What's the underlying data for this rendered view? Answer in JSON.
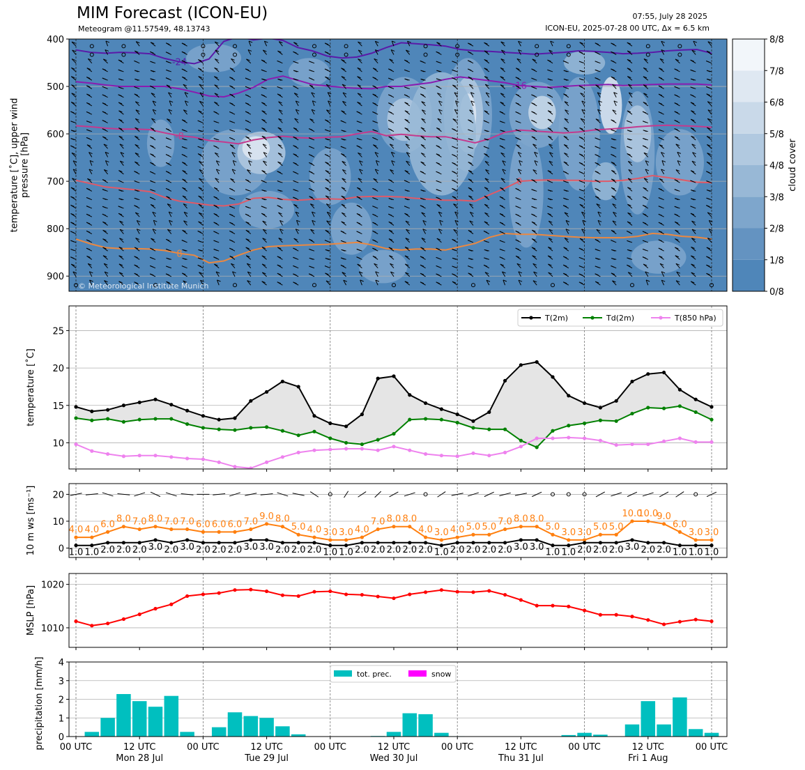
{
  "header": {
    "title": "MIM Forecast (ICON-EU)",
    "subtitle": "Meteogram @11.57549, 48.13743",
    "issued": "07:55, July 28 2025",
    "model_info": "ICON-EU, 2025-07-28 00 UTC, Δx = 6.5 km",
    "copyright": "© Meteorological Institute Munich"
  },
  "x_axis": {
    "tick_labels": [
      "00 UTC",
      "12 UTC",
      "00 UTC",
      "12 UTC",
      "00 UTC",
      "12 UTC",
      "00 UTC",
      "12 UTC",
      "00 UTC",
      "12 UTC",
      "00 UTC"
    ],
    "day_labels": [
      "Mon 28 Jul",
      "Tue 29 Jul",
      "Wed 30 Jul",
      "Thu 31 Jul",
      "Fri 1 Aug"
    ],
    "hours_range": [
      0,
      120
    ],
    "step_hours": 3
  },
  "chart_data": [
    {
      "type": "heatmap",
      "name": "upper-air",
      "ylabel": "temperature [˚C], upper wind\npressure [hPa]",
      "yticks": [
        400,
        500,
        600,
        700,
        800,
        900
      ],
      "ylim": [
        932,
        400
      ],
      "colorbar": {
        "label": "cloud cover",
        "ticks": [
          "0/8",
          "1/8",
          "2/8",
          "3/8",
          "4/8",
          "5/8",
          "6/8",
          "7/8",
          "8/8"
        ],
        "colors": [
          "#4f86b9",
          "#6493c1",
          "#7ea6cc",
          "#98b8d6",
          "#b1c9e0",
          "#c9d9e9",
          "#dfe8f2",
          "#f2f6fa"
        ]
      },
      "isotherms": [
        {
          "label": "-24",
          "color": "#5a1aa8",
          "p": [
            423,
            428,
            430,
            428,
            429,
            431,
            441,
            448,
            452,
            442,
            405,
            395,
            402,
            398,
            403,
            418,
            425,
            436,
            440,
            438,
            430,
            418,
            408,
            410,
            412,
            415,
            422,
            425,
            426,
            428,
            430,
            432,
            430,
            428,
            425,
            426,
            428,
            431,
            430,
            428,
            425,
            423,
            422,
            430
          ]
        },
        {
          "label": "-16",
          "color": "#8a1cb0",
          "p": [
            490,
            493,
            497,
            500,
            500,
            500,
            500,
            505,
            512,
            520,
            522,
            514,
            502,
            485,
            478,
            487,
            496,
            499,
            502,
            504,
            505,
            500,
            500,
            496,
            492,
            485,
            480,
            484,
            488,
            492,
            498,
            500,
            502,
            500,
            498,
            497,
            496,
            498,
            497,
            496,
            495,
            495,
            495,
            497
          ]
        },
        {
          "label": "-8",
          "color": "#c43a8e",
          "p": [
            583,
            585,
            588,
            590,
            590,
            591,
            598,
            604,
            607,
            614,
            617,
            621,
            613,
            608,
            605,
            608,
            609,
            607,
            606,
            600,
            595,
            604,
            601,
            604,
            606,
            606,
            612,
            619,
            610,
            597,
            592,
            594,
            596,
            598,
            596,
            592,
            590,
            588,
            585,
            583,
            582,
            583,
            584,
            586
          ]
        },
        {
          "label": "0",
          "color": "#e05a68",
          "p": [
            698,
            705,
            712,
            715,
            718,
            722,
            734,
            742,
            746,
            750,
            752,
            748,
            736,
            734,
            738,
            740,
            738,
            737,
            738,
            733,
            732,
            732,
            733,
            736,
            738,
            740,
            740,
            742,
            728,
            715,
            700,
            698,
            697,
            698,
            698,
            700,
            700,
            698,
            694,
            688,
            692,
            697,
            702,
            703
          ]
        },
        {
          "label": "8",
          "color": "#ec8840",
          "p": [
            822,
            832,
            840,
            842,
            842,
            843,
            846,
            852,
            856,
            872,
            868,
            856,
            845,
            838,
            836,
            835,
            834,
            833,
            831,
            829,
            834,
            842,
            845,
            843,
            843,
            845,
            838,
            831,
            818,
            810,
            812,
            812,
            814,
            816,
            818,
            819,
            819,
            819,
            816,
            810,
            812,
            816,
            818,
            822
          ]
        }
      ],
      "wind_levels_hpa": [
        400,
        500,
        600,
        700,
        800,
        900
      ]
    },
    {
      "type": "line",
      "name": "temperature",
      "ylabel": "temperature [˚C]",
      "ylim": [
        6.5,
        28.3
      ],
      "yticks": [
        10,
        15,
        20,
        25
      ],
      "series": [
        {
          "name": "T(2m)",
          "color": "#000000",
          "values": [
            14.8,
            14.2,
            14.4,
            15.0,
            15.4,
            15.8,
            15.1,
            14.3,
            13.6,
            13.1,
            13.3,
            15.6,
            16.8,
            18.2,
            17.5,
            13.6,
            12.6,
            12.2,
            13.8,
            18.6,
            18.9,
            16.4,
            15.3,
            14.5,
            13.8,
            12.9,
            14.1,
            18.3,
            20.4,
            20.8,
            18.8,
            16.3,
            15.3,
            14.7,
            15.6,
            18.2,
            19.2,
            19.4,
            17.1,
            15.8,
            14.8
          ]
        },
        {
          "name": "Td(2m)",
          "color": "#008000",
          "values": [
            13.3,
            13.0,
            13.2,
            12.8,
            13.1,
            13.2,
            13.2,
            12.5,
            12.0,
            11.8,
            11.7,
            12.0,
            12.1,
            11.6,
            11.0,
            11.5,
            10.6,
            10.0,
            9.8,
            10.4,
            11.2,
            13.1,
            13.2,
            13.1,
            12.7,
            12.0,
            11.8,
            11.8,
            10.3,
            9.4,
            11.6,
            12.3,
            12.6,
            13.0,
            12.9,
            13.9,
            14.7,
            14.6,
            14.9,
            14.1,
            13.1
          ]
        },
        {
          "name": "T(850 hPa)",
          "color": "#ee82ee",
          "values": [
            9.8,
            8.9,
            8.5,
            8.2,
            8.3,
            8.3,
            8.1,
            7.9,
            7.8,
            7.4,
            6.8,
            6.6,
            7.4,
            8.1,
            8.7,
            9.0,
            9.1,
            9.2,
            9.2,
            9.0,
            9.5,
            9.0,
            8.5,
            8.3,
            8.2,
            8.6,
            8.3,
            8.7,
            9.5,
            10.6,
            10.6,
            10.7,
            10.6,
            10.3,
            9.7,
            9.8,
            9.8,
            10.2,
            10.6,
            10.1,
            10.1
          ]
        }
      ]
    },
    {
      "type": "line",
      "name": "wind",
      "ylabel": "10 m ws [ms⁻¹]",
      "ylim": [
        -3.5,
        24
      ],
      "yticks": [
        0,
        10,
        20
      ],
      "series": [
        {
          "name": "gust",
          "color": "#ff7f0e",
          "values": [
            4.0,
            4.0,
            6.0,
            8.0,
            7.0,
            8.0,
            7.0,
            7.0,
            6.0,
            6.0,
            6.0,
            7.0,
            9.0,
            8.0,
            5.0,
            4.0,
            3.0,
            3.0,
            4.0,
            7.0,
            8.0,
            8.0,
            4.0,
            3.0,
            4.0,
            5.0,
            5.0,
            7.0,
            8.0,
            8.0,
            5.0,
            3.0,
            3.0,
            5.0,
            5.0,
            10.0,
            10.0,
            9.0,
            6.0,
            3.0,
            3.0
          ]
        },
        {
          "name": "mean",
          "color": "#000000",
          "values": [
            1.0,
            1.0,
            2.0,
            2.0,
            2.0,
            3.0,
            2.0,
            3.0,
            2.0,
            2.0,
            2.0,
            3.0,
            3.0,
            2.0,
            2.0,
            2.0,
            1.0,
            1.0,
            2.0,
            2.0,
            2.0,
            2.0,
            2.0,
            1.0,
            2.0,
            2.0,
            2.0,
            2.0,
            3.0,
            3.0,
            1.0,
            1.0,
            2.0,
            2.0,
            2.0,
            3.0,
            2.0,
            2.0,
            1.0,
            1.0,
            1.0
          ]
        }
      ],
      "wind_dir_deg": [
        250,
        260,
        300,
        280,
        240,
        310,
        300,
        280,
        270,
        260,
        240,
        250,
        260,
        300,
        290,
        320,
        0,
        20,
        40,
        30,
        45,
        60,
        0,
        40,
        70,
        60,
        50,
        65,
        70,
        50,
        0,
        0,
        0,
        45,
        60,
        50,
        60,
        45,
        40,
        0,
        50
      ]
    },
    {
      "type": "line",
      "name": "pressure",
      "ylabel": "MSLP [hPa]",
      "ylim": [
        1005.5,
        1022.5
      ],
      "yticks": [
        1010,
        1020
      ],
      "series": [
        {
          "name": "MSLP",
          "color": "#ff0000",
          "values": [
            1011.5,
            1010.5,
            1011.0,
            1012.0,
            1013.1,
            1014.4,
            1015.4,
            1017.3,
            1017.7,
            1018.0,
            1018.7,
            1018.8,
            1018.4,
            1017.5,
            1017.3,
            1018.3,
            1018.4,
            1017.7,
            1017.6,
            1017.2,
            1016.8,
            1017.7,
            1018.2,
            1018.7,
            1018.3,
            1018.2,
            1018.5,
            1017.6,
            1016.4,
            1015.1,
            1015.1,
            1014.9,
            1014.0,
            1013.0,
            1013.0,
            1012.6,
            1011.8,
            1010.8,
            1011.4,
            1011.9,
            1011.5
          ]
        }
      ]
    },
    {
      "type": "bar",
      "name": "precipitation",
      "ylabel": "precipitation [mm/h]",
      "ylim": [
        0,
        4
      ],
      "yticks": [
        0,
        1,
        2,
        3,
        4
      ],
      "series": [
        {
          "name": "tot. prec.",
          "color": "#00bfbf",
          "values": [
            0,
            0.25,
            1.0,
            2.28,
            1.9,
            1.6,
            2.18,
            0.25,
            0,
            0.5,
            1.3,
            1.1,
            1.0,
            0.55,
            0.12,
            0,
            0,
            0,
            0,
            0.03,
            0.25,
            1.25,
            1.2,
            0.2,
            0.02,
            0,
            0,
            0,
            0,
            0,
            0,
            0.08,
            0.2,
            0.1,
            0,
            0.65,
            1.9,
            0.65,
            2.1,
            0.4,
            0.2
          ]
        },
        {
          "name": "snow",
          "color": "#ff00ff",
          "values": [
            0,
            0,
            0,
            0,
            0,
            0,
            0,
            0,
            0,
            0,
            0,
            0,
            0,
            0,
            0,
            0,
            0,
            0,
            0,
            0,
            0,
            0,
            0,
            0,
            0,
            0,
            0,
            0,
            0,
            0,
            0,
            0,
            0,
            0,
            0,
            0,
            0,
            0,
            0,
            0,
            0
          ]
        }
      ]
    }
  ]
}
